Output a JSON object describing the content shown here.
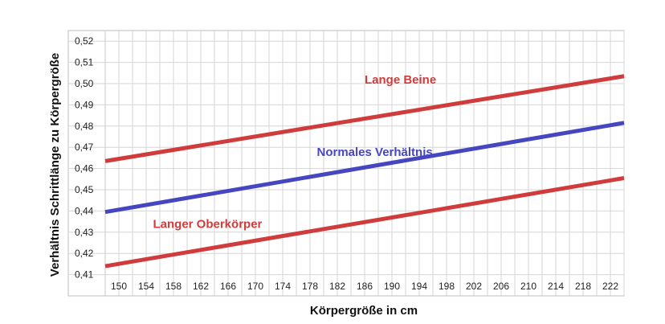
{
  "chart_data": {
    "type": "line",
    "xlabel": "Körpergröße in cm",
    "ylabel": "Verhältnis Schrittlänge zu Körpergröße",
    "xlim": [
      148,
      224
    ],
    "ylim": [
      0.4,
      0.525
    ],
    "x_ticks": [
      150,
      154,
      158,
      162,
      166,
      170,
      174,
      178,
      182,
      186,
      190,
      194,
      198,
      202,
      206,
      210,
      214,
      218,
      222
    ],
    "x_tick_labels": [
      "150",
      "154",
      "158",
      "162",
      "166",
      "170",
      "174",
      "178",
      "182",
      "186",
      "190",
      "194",
      "198",
      "202",
      "206",
      "210",
      "214",
      "218",
      "222"
    ],
    "y_ticks": [
      0.41,
      0.42,
      0.43,
      0.44,
      0.45,
      0.46,
      0.47,
      0.48,
      0.49,
      0.5,
      0.51,
      0.52
    ],
    "y_tick_labels": [
      "0,41",
      "0,42",
      "0,43",
      "0,44",
      "0,45",
      "0,46",
      "0,47",
      "0,48",
      "0,49",
      "0,50",
      "0,51",
      "0,52"
    ],
    "grid": true,
    "legend": "none",
    "series": [
      {
        "label": "Lange Beine",
        "color": "#d03c3c",
        "x": [
          148,
          224
        ],
        "y": [
          0.4635,
          0.5035
        ],
        "label_at": [
          186,
          0.5
        ],
        "label_text": "Lange Beine"
      },
      {
        "label": "Normales Verhältnis",
        "color": "#4646c0",
        "x": [
          148,
          224
        ],
        "y": [
          0.4395,
          0.4815
        ],
        "label_at": [
          179,
          0.466
        ],
        "label_text": "Normales Verhältnis"
      },
      {
        "label": "Langer Oberkörper",
        "color": "#d03c3c",
        "x": [
          148,
          224
        ],
        "y": [
          0.414,
          0.4555
        ],
        "label_at": [
          155,
          0.432
        ],
        "label_text": "Langer Oberkörper"
      }
    ]
  }
}
